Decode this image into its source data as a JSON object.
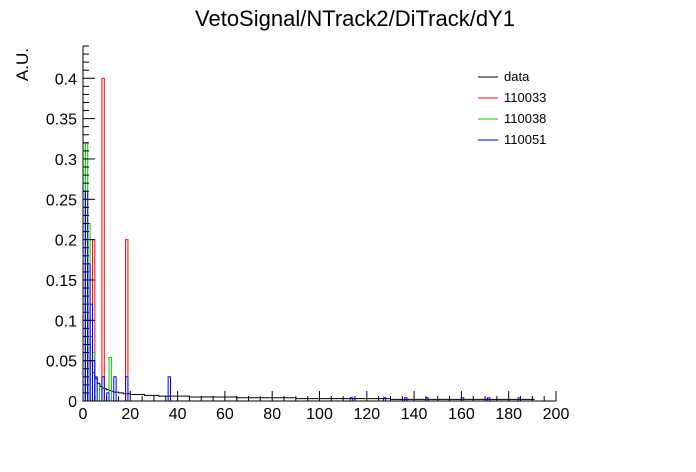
{
  "chart_data": {
    "type": "histogram",
    "title": "VetoSignal/NTrack2/DiTrack/dY1",
    "xlabel": "",
    "ylabel": "A.U.",
    "xlim": [
      0,
      200
    ],
    "ylim": [
      0,
      0.44
    ],
    "x_ticks": [
      "0",
      "20",
      "40",
      "60",
      "80",
      "100",
      "120",
      "140",
      "160",
      "180",
      "200"
    ],
    "y_ticks": [
      "0",
      "0.05",
      "0.1",
      "0.15",
      "0.2",
      "0.25",
      "0.3",
      "0.35",
      "0.4"
    ],
    "y_tick_values": [
      0,
      0.05,
      0.1,
      0.15,
      0.2,
      0.25,
      0.3,
      0.35,
      0.4
    ],
    "x_tick_values": [
      0,
      20,
      40,
      60,
      80,
      100,
      120,
      140,
      160,
      180,
      200
    ],
    "bin_width": 1,
    "grid": false,
    "legend_position": "top-right",
    "series": [
      {
        "name": "data",
        "color": "#000000",
        "style": "step",
        "x": [
          0,
          1,
          2,
          3,
          4,
          5,
          6,
          7,
          8,
          9,
          10,
          11,
          12,
          13,
          14,
          15,
          16,
          17,
          18,
          19,
          20,
          22,
          24,
          26,
          28,
          30,
          32,
          34,
          36,
          38,
          40,
          45,
          50,
          55,
          60,
          65,
          70,
          75,
          80,
          85,
          90,
          95,
          100,
          110,
          120,
          130,
          140,
          150,
          160,
          170,
          180,
          190
        ],
        "values": [
          0.13,
          0.1,
          0.07,
          0.05,
          0.035,
          0.028,
          0.022,
          0.018,
          0.016,
          0.015,
          0.014,
          0.013,
          0.012,
          0.011,
          0.011,
          0.01,
          0.01,
          0.009,
          0.009,
          0.009,
          0.008,
          0.008,
          0.008,
          0.007,
          0.007,
          0.007,
          0.006,
          0.006,
          0.006,
          0.006,
          0.006,
          0.005,
          0.005,
          0.005,
          0.005,
          0.004,
          0.004,
          0.004,
          0.004,
          0.004,
          0.003,
          0.003,
          0.003,
          0.003,
          0.003,
          0.002,
          0.002,
          0.002,
          0.002,
          0.002,
          0.002,
          0.002
        ]
      },
      {
        "name": "110033",
        "color": "#ff0000",
        "style": "bars",
        "x": [
          0,
          1,
          2,
          4,
          8,
          18
        ],
        "values": [
          0.05,
          0.2,
          0.1,
          0.2,
          0.4,
          0.2
        ]
      },
      {
        "name": "110038",
        "color": "#00cc00",
        "style": "bars",
        "x": [
          0,
          1,
          2,
          3,
          4,
          7,
          11
        ],
        "values": [
          0.32,
          0.32,
          0.22,
          0.08,
          0.06,
          0.02,
          0.054
        ]
      },
      {
        "name": "110051",
        "color": "#0000ff",
        "style": "bars",
        "x": [
          0,
          1,
          2,
          3,
          4,
          5,
          8,
          10,
          13,
          18,
          36,
          113,
          127,
          136,
          145,
          160,
          171,
          184
        ],
        "values": [
          0.26,
          0.26,
          0.17,
          0.12,
          0.05,
          0.03,
          0.03,
          0.01,
          0.03,
          0.03,
          0.03,
          0.004,
          0.004,
          0.004,
          0.004,
          0.004,
          0.004,
          0.004
        ]
      }
    ]
  }
}
